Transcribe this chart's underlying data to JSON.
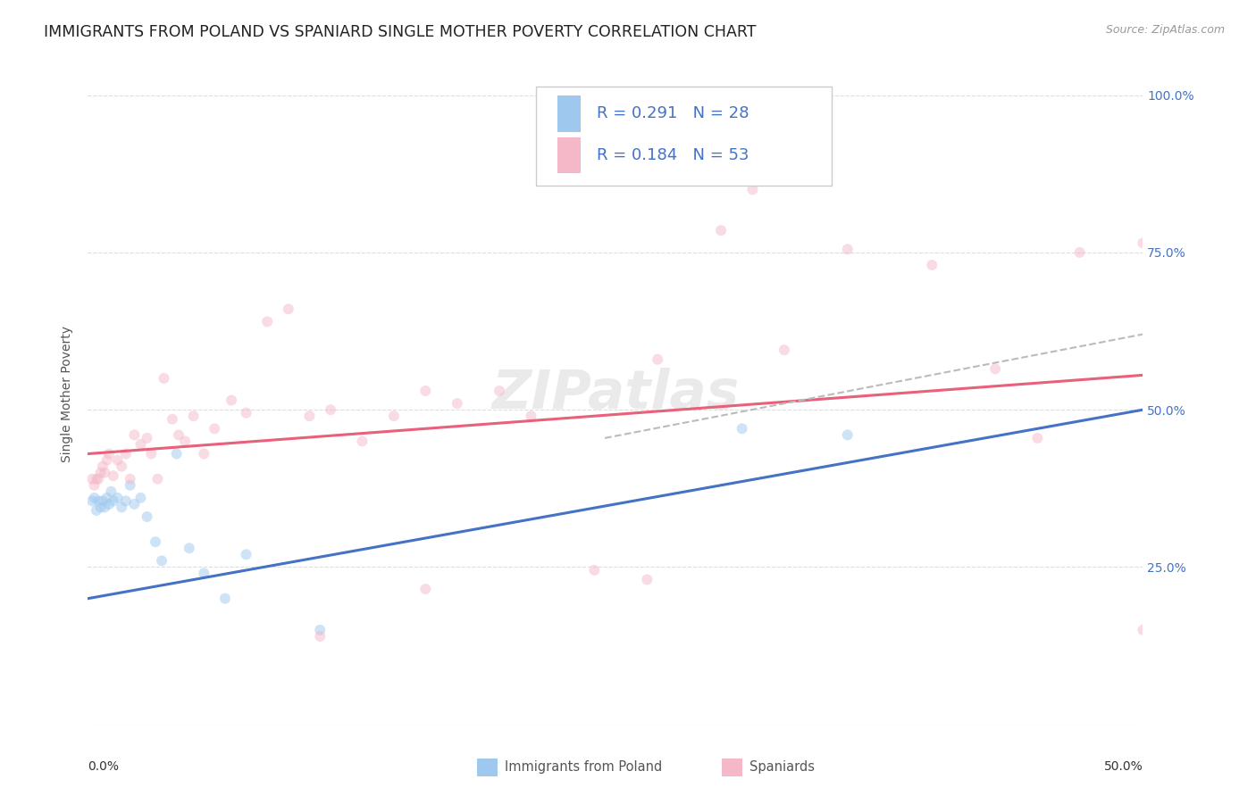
{
  "title": "IMMIGRANTS FROM POLAND VS SPANIARD SINGLE MOTHER POVERTY CORRELATION CHART",
  "source": "Source: ZipAtlas.com",
  "ylabel": "Single Mother Poverty",
  "y_ticks": [
    0.0,
    0.25,
    0.5,
    0.75,
    1.0
  ],
  "y_tick_labels_right": [
    "",
    "25.0%",
    "50.0%",
    "75.0%",
    "100.0%"
  ],
  "xlim": [
    0.0,
    0.5
  ],
  "ylim": [
    0.0,
    1.05
  ],
  "legend_R1": "R = 0.291",
  "legend_N1": "N = 28",
  "legend_R2": "R = 0.184",
  "legend_N2": "N = 53",
  "color_blue": "#9EC8EE",
  "color_pink": "#F5B8C8",
  "color_blue_text": "#4472C4",
  "color_line_blue": "#4472C4",
  "color_line_pink": "#E8607A",
  "color_dashed": "#BBBBBB",
  "background": "#FFFFFF",
  "grid_color": "#DDDDDD",
  "label1": "Immigrants from Poland",
  "label2": "Spaniards",
  "blue_x": [
    0.002,
    0.003,
    0.004,
    0.005,
    0.006,
    0.007,
    0.008,
    0.009,
    0.01,
    0.011,
    0.012,
    0.014,
    0.016,
    0.018,
    0.02,
    0.022,
    0.025,
    0.028,
    0.032,
    0.035,
    0.042,
    0.048,
    0.055,
    0.065,
    0.075,
    0.11,
    0.31,
    0.36
  ],
  "blue_y": [
    0.355,
    0.36,
    0.34,
    0.355,
    0.345,
    0.355,
    0.345,
    0.36,
    0.35,
    0.37,
    0.355,
    0.36,
    0.345,
    0.355,
    0.38,
    0.35,
    0.36,
    0.33,
    0.29,
    0.26,
    0.43,
    0.28,
    0.24,
    0.2,
    0.27,
    0.15,
    0.47,
    0.46
  ],
  "pink_x": [
    0.002,
    0.003,
    0.004,
    0.005,
    0.006,
    0.007,
    0.008,
    0.009,
    0.01,
    0.012,
    0.014,
    0.016,
    0.018,
    0.02,
    0.022,
    0.025,
    0.028,
    0.03,
    0.033,
    0.036,
    0.04,
    0.043,
    0.046,
    0.05,
    0.055,
    0.06,
    0.068,
    0.075,
    0.085,
    0.095,
    0.105,
    0.115,
    0.13,
    0.145,
    0.16,
    0.175,
    0.195,
    0.21,
    0.24,
    0.265,
    0.3,
    0.315,
    0.33,
    0.36,
    0.4,
    0.43,
    0.45,
    0.47,
    0.5,
    0.5,
    0.11,
    0.16,
    0.27
  ],
  "pink_y": [
    0.39,
    0.38,
    0.39,
    0.39,
    0.4,
    0.41,
    0.4,
    0.42,
    0.43,
    0.395,
    0.42,
    0.41,
    0.43,
    0.39,
    0.46,
    0.445,
    0.455,
    0.43,
    0.39,
    0.55,
    0.485,
    0.46,
    0.45,
    0.49,
    0.43,
    0.47,
    0.515,
    0.495,
    0.64,
    0.66,
    0.49,
    0.5,
    0.45,
    0.49,
    0.53,
    0.51,
    0.53,
    0.49,
    0.245,
    0.23,
    0.785,
    0.85,
    0.595,
    0.755,
    0.73,
    0.565,
    0.455,
    0.75,
    0.765,
    0.15,
    0.14,
    0.215,
    0.58
  ],
  "blue_line_x": [
    0.0,
    0.5
  ],
  "blue_line_y": [
    0.2,
    0.5
  ],
  "pink_line_x": [
    0.0,
    0.5
  ],
  "pink_line_y": [
    0.43,
    0.555
  ],
  "dashed_line_x": [
    0.245,
    0.5
  ],
  "dashed_line_y": [
    0.455,
    0.62
  ],
  "marker_size": 75,
  "alpha_scatter": 0.5,
  "title_fontsize": 12.5,
  "axis_label_fontsize": 10,
  "tick_fontsize": 10,
  "legend_fontsize": 13
}
